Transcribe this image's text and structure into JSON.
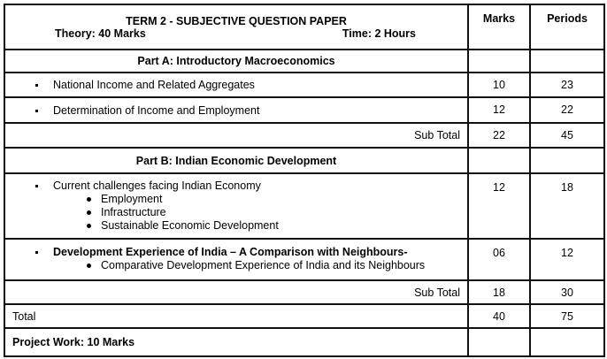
{
  "header": {
    "title": "TERM 2 -  SUBJECTIVE QUESTION PAPER",
    "theory": "Theory: 40 Marks",
    "time": "Time: 2 Hours",
    "marks_col": "Marks",
    "periods_col": "Periods"
  },
  "part_a": {
    "title": "Part A: Introductory Macroeconomics",
    "items": [
      {
        "label": "National Income and Related Aggregates",
        "marks": "10",
        "periods": "23"
      },
      {
        "label": "Determination of Income and Employment",
        "marks": "12",
        "periods": "22"
      }
    ],
    "subtotal": {
      "label": "Sub Total",
      "marks": "22",
      "periods": "45"
    }
  },
  "part_b": {
    "title": "Part B: Indian Economic Development",
    "items": [
      {
        "label": "Current challenges facing Indian Economy",
        "subitems": [
          "Employment",
          "Infrastructure",
          "Sustainable Economic Development"
        ],
        "marks": "12",
        "periods": "18"
      },
      {
        "label": "Development Experience of India – A Comparison with Neighbours-",
        "subitems": [
          "Comparative Development Experience of India and its Neighbours"
        ],
        "marks": "06",
        "periods": "12"
      }
    ],
    "subtotal": {
      "label": "Sub Total",
      "marks": "18",
      "periods": "30"
    }
  },
  "total": {
    "label": "Total",
    "marks": "40",
    "periods": "75"
  },
  "project": {
    "label": "Project Work: 10 Marks"
  }
}
